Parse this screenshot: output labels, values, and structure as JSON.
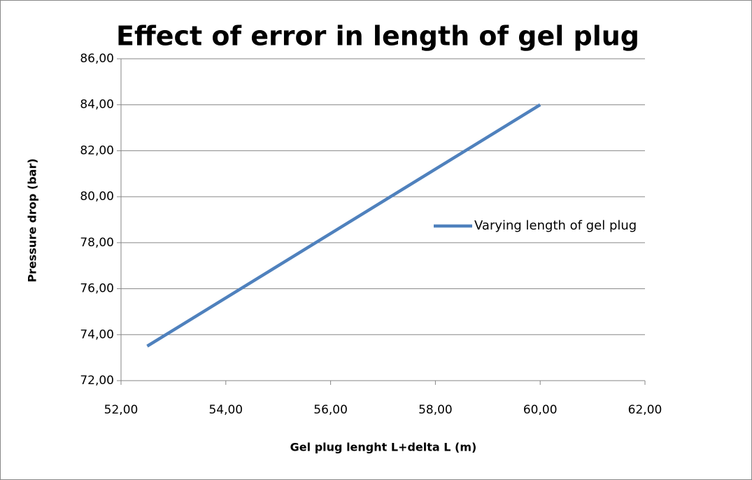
{
  "chart_data": {
    "type": "line",
    "title": "Effect of error in length of gel plug",
    "x_label": "Gel plug lenght L+delta L (m)",
    "y_label": "Pressure drop (bar)",
    "x": [
      52.5,
      60
    ],
    "series": [
      {
        "name": "Varying length of gel plug",
        "color": "#4f81bd",
        "values": [
          73.5,
          84
        ]
      }
    ],
    "xlim": [
      52,
      62
    ],
    "xticks": [
      {
        "value": 52,
        "label": "52,00"
      },
      {
        "value": 54,
        "label": "54,00"
      },
      {
        "value": 56,
        "label": "56,00"
      },
      {
        "value": 58,
        "label": "58,00"
      },
      {
        "value": 60,
        "label": "60,00"
      },
      {
        "value": 62,
        "label": "62,00"
      }
    ],
    "ylim": [
      72,
      86
    ],
    "yticks": [
      {
        "value": 72,
        "label": "72,00"
      },
      {
        "value": 74,
        "label": "74,00"
      },
      {
        "value": 76,
        "label": "76,00"
      },
      {
        "value": 78,
        "label": "78,00"
      },
      {
        "value": 80,
        "label": "80,00"
      },
      {
        "value": 82,
        "label": "82,00"
      },
      {
        "value": 84,
        "label": "84,00"
      },
      {
        "value": 86,
        "label": "86,00"
      }
    ],
    "grid": true,
    "legend": "right"
  }
}
